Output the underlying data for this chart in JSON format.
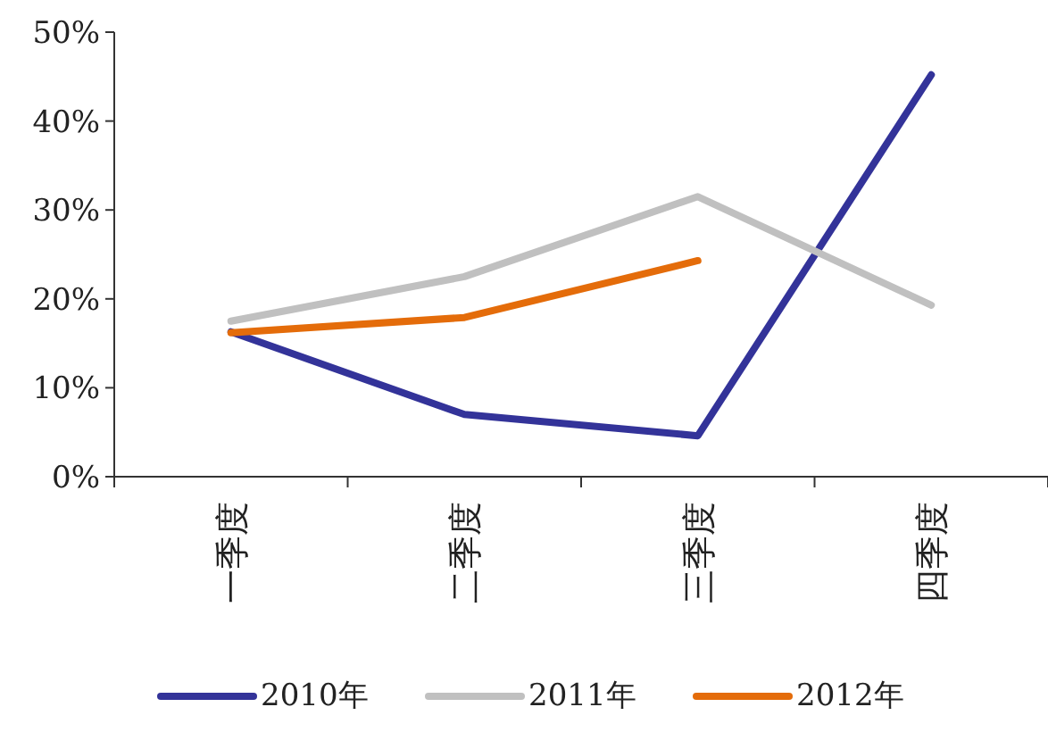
{
  "chart_data": {
    "type": "line",
    "categories": [
      "一季度",
      "二季度",
      "三季度",
      "四季度"
    ],
    "series": [
      {
        "name": "2010年",
        "color": "#333399",
        "values": [
          16.3,
          7.0,
          4.6,
          45.2
        ]
      },
      {
        "name": "2011年",
        "color": "#c0c0c0",
        "values": [
          17.5,
          22.5,
          31.5,
          19.3
        ]
      },
      {
        "name": "2012年",
        "color": "#e46c0a",
        "values": [
          16.2,
          17.9,
          24.3,
          null
        ]
      }
    ],
    "ylim": [
      0,
      50
    ],
    "yticks": [
      {
        "value": 0,
        "label": "0%"
      },
      {
        "value": 10,
        "label": "10%"
      },
      {
        "value": 20,
        "label": "20%"
      },
      {
        "value": 30,
        "label": "30%"
      },
      {
        "value": 40,
        "label": "40%"
      },
      {
        "value": 50,
        "label": "50%"
      }
    ],
    "grid": false,
    "legend": "bottom",
    "marker": "none",
    "line_style": "solid"
  }
}
